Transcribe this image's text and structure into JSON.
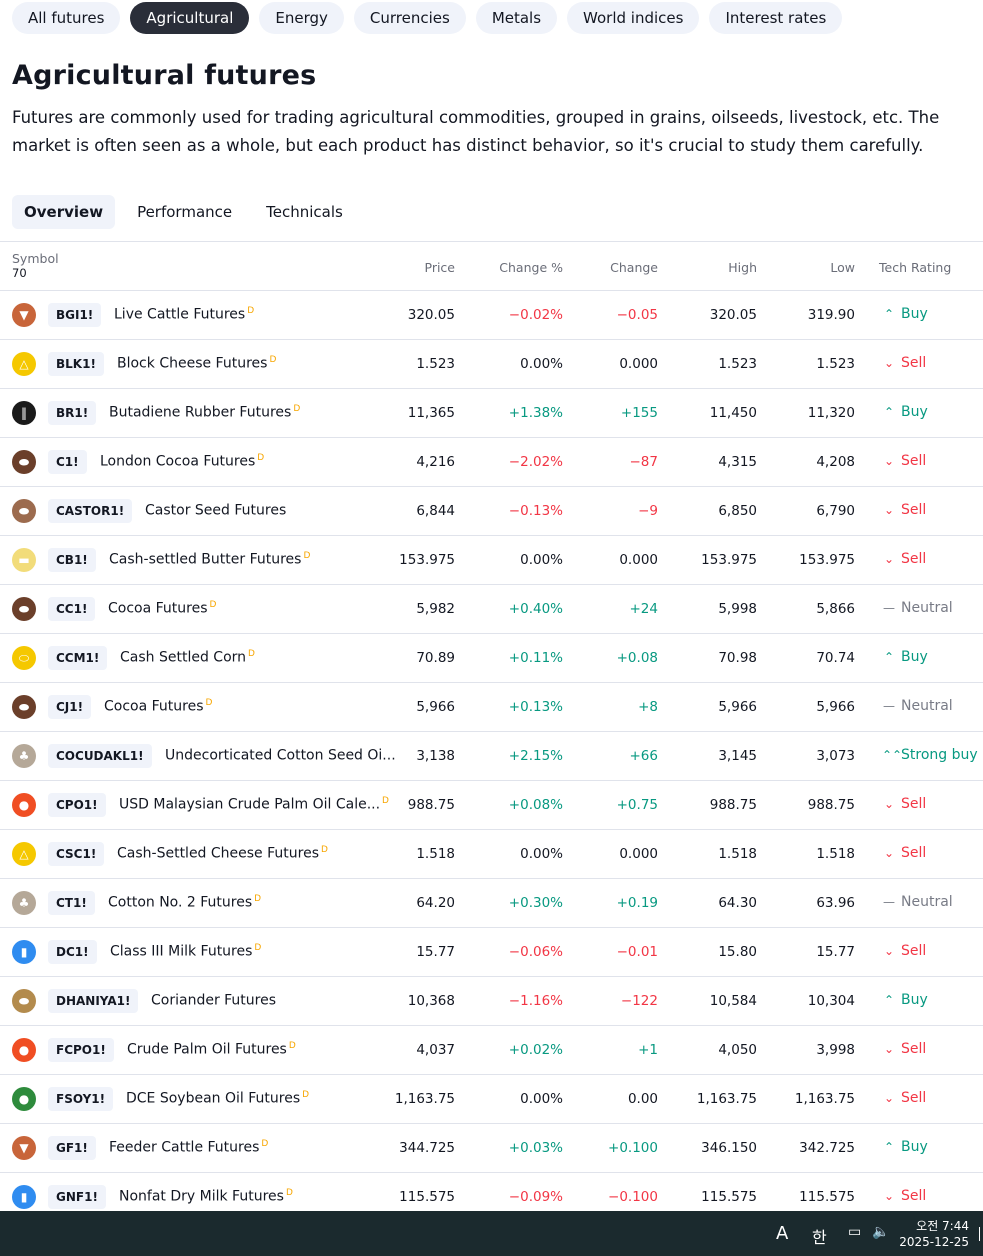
{
  "category_pills": [
    "All futures",
    "Agricultural",
    "Energy",
    "Currencies",
    "Metals",
    "World indices",
    "Interest rates"
  ],
  "active_pill": "Agricultural",
  "title": "Agricultural futures",
  "description": "Futures are commonly used for trading agricultural commodities, grouped in grains, oilseeds, livestock, etc. The market is often seen as a whole, but each product has distinct behavior, so it's crucial to study them carefully.",
  "tabs": [
    "Overview",
    "Performance",
    "Technicals"
  ],
  "active_tab": "Overview",
  "table": {
    "headers": {
      "symbol": "Symbol",
      "count": "70",
      "price": "Price",
      "change_pct": "Change %",
      "change": "Change",
      "high": "High",
      "low": "Low",
      "rating": "Tech Rating"
    },
    "rows": [
      {
        "ticker": "BGI1!",
        "name": "Live Cattle Futures",
        "d": "D",
        "price": "320.05",
        "chg_pct": "−0.02%",
        "chg": "−0.05",
        "high": "320.05",
        "low": "319.90",
        "rating": "Buy",
        "logo_color": "#c8653a",
        "logo": "cattle-icon"
      },
      {
        "ticker": "BLK1!",
        "name": "Block Cheese Futures",
        "d": "D",
        "price": "1.523",
        "chg_pct": "0.00%",
        "chg": "0.000",
        "high": "1.523",
        "low": "1.523",
        "rating": "Sell",
        "logo_color": "#f5c800",
        "logo": "cheese-icon"
      },
      {
        "ticker": "BR1!",
        "name": "Butadiene Rubber Futures",
        "d": "D",
        "price": "11,365",
        "chg_pct": "+1.38%",
        "chg": "+155",
        "high": "11,450",
        "low": "11,320",
        "rating": "Buy",
        "logo_color": "#1a1a1a",
        "logo": "rubber-icon"
      },
      {
        "ticker": "C1!",
        "name": "London Cocoa Futures",
        "d": "D",
        "price": "4,216",
        "chg_pct": "−2.02%",
        "chg": "−87",
        "high": "4,315",
        "low": "4,208",
        "rating": "Sell",
        "logo_color": "#6b3f2a",
        "logo": "cocoa-icon"
      },
      {
        "ticker": "CASTOR1!",
        "name": "Castor Seed Futures",
        "d": "",
        "price": "6,844",
        "chg_pct": "−0.13%",
        "chg": "−9",
        "high": "6,850",
        "low": "6,790",
        "rating": "Sell",
        "logo_color": "#9c6b4e",
        "logo": "seed-icon"
      },
      {
        "ticker": "CB1!",
        "name": "Cash-settled Butter Futures",
        "d": "D",
        "price": "153.975",
        "chg_pct": "0.00%",
        "chg": "0.000",
        "high": "153.975",
        "low": "153.975",
        "rating": "Sell",
        "logo_color": "#f2dc7a",
        "logo": "butter-icon"
      },
      {
        "ticker": "CC1!",
        "name": "Cocoa Futures",
        "d": "D",
        "price": "5,982",
        "chg_pct": "+0.40%",
        "chg": "+24",
        "high": "5,998",
        "low": "5,866",
        "rating": "Neutral",
        "logo_color": "#6b3f2a",
        "logo": "cocoa-icon"
      },
      {
        "ticker": "CCM1!",
        "name": "Cash Settled Corn",
        "d": "D",
        "price": "70.89",
        "chg_pct": "+0.11%",
        "chg": "+0.08",
        "high": "70.98",
        "low": "70.74",
        "rating": "Buy",
        "logo_color": "#f5c800",
        "logo": "corn-icon"
      },
      {
        "ticker": "CJ1!",
        "name": "Cocoa Futures",
        "d": "D",
        "price": "5,966",
        "chg_pct": "+0.13%",
        "chg": "+8",
        "high": "5,966",
        "low": "5,966",
        "rating": "Neutral",
        "logo_color": "#6b3f2a",
        "logo": "cocoa-icon"
      },
      {
        "ticker": "COCUDAKL1!",
        "name": "Undecorticated Cotton Seed Oi...",
        "d": "",
        "price": "3,138",
        "chg_pct": "+2.15%",
        "chg": "+66",
        "high": "3,145",
        "low": "3,073",
        "rating": "Strong buy",
        "logo_color": "#b5a898",
        "logo": "cotton-icon"
      },
      {
        "ticker": "CPO1!",
        "name": "USD Malaysian Crude Palm Oil Cale...",
        "d": "D",
        "price": "988.75",
        "chg_pct": "+0.08%",
        "chg": "+0.75",
        "high": "988.75",
        "low": "988.75",
        "rating": "Sell",
        "logo_color": "#f04e23",
        "logo": "oil-drop-icon"
      },
      {
        "ticker": "CSC1!",
        "name": "Cash-Settled Cheese Futures",
        "d": "D",
        "price": "1.518",
        "chg_pct": "0.00%",
        "chg": "0.000",
        "high": "1.518",
        "low": "1.518",
        "rating": "Sell",
        "logo_color": "#f5c800",
        "logo": "cheese-icon"
      },
      {
        "ticker": "CT1!",
        "name": "Cotton No. 2 Futures",
        "d": "D",
        "price": "64.20",
        "chg_pct": "+0.30%",
        "chg": "+0.19",
        "high": "64.30",
        "low": "63.96",
        "rating": "Neutral",
        "logo_color": "#b5a898",
        "logo": "cotton-icon"
      },
      {
        "ticker": "DC1!",
        "name": "Class III Milk Futures",
        "d": "D",
        "price": "15.77",
        "chg_pct": "−0.06%",
        "chg": "−0.01",
        "high": "15.80",
        "low": "15.77",
        "rating": "Sell",
        "logo_color": "#2f8cf0",
        "logo": "milk-icon"
      },
      {
        "ticker": "DHANIYA1!",
        "name": "Coriander Futures",
        "d": "",
        "price": "10,368",
        "chg_pct": "−1.16%",
        "chg": "−122",
        "high": "10,584",
        "low": "10,304",
        "rating": "Buy",
        "logo_color": "#b38b4d",
        "logo": "seed-icon"
      },
      {
        "ticker": "FCPO1!",
        "name": "Crude Palm Oil Futures",
        "d": "D",
        "price": "4,037",
        "chg_pct": "+0.02%",
        "chg": "+1",
        "high": "4,050",
        "low": "3,998",
        "rating": "Sell",
        "logo_color": "#f04e23",
        "logo": "oil-drop-icon"
      },
      {
        "ticker": "FSOY1!",
        "name": "DCE Soybean Oil Futures",
        "d": "D",
        "price": "1,163.75",
        "chg_pct": "0.00%",
        "chg": "0.00",
        "high": "1,163.75",
        "low": "1,163.75",
        "rating": "Sell",
        "logo_color": "#2e8b3c",
        "logo": "oil-drop-icon"
      },
      {
        "ticker": "GF1!",
        "name": "Feeder Cattle Futures",
        "d": "D",
        "price": "344.725",
        "chg_pct": "+0.03%",
        "chg": "+0.100",
        "high": "346.150",
        "low": "342.725",
        "rating": "Buy",
        "logo_color": "#c8653a",
        "logo": "cattle-icon"
      },
      {
        "ticker": "GNF1!",
        "name": "Nonfat Dry Milk Futures",
        "d": "D",
        "price": "115.575",
        "chg_pct": "−0.09%",
        "chg": "−0.100",
        "high": "115.575",
        "low": "115.575",
        "rating": "Sell",
        "logo_color": "#2f8cf0",
        "logo": "milk-icon"
      }
    ]
  },
  "taskbar": {
    "ime_a": "A",
    "ime_han": "한",
    "time": "오전 7:44",
    "date": "2025-12-25"
  }
}
